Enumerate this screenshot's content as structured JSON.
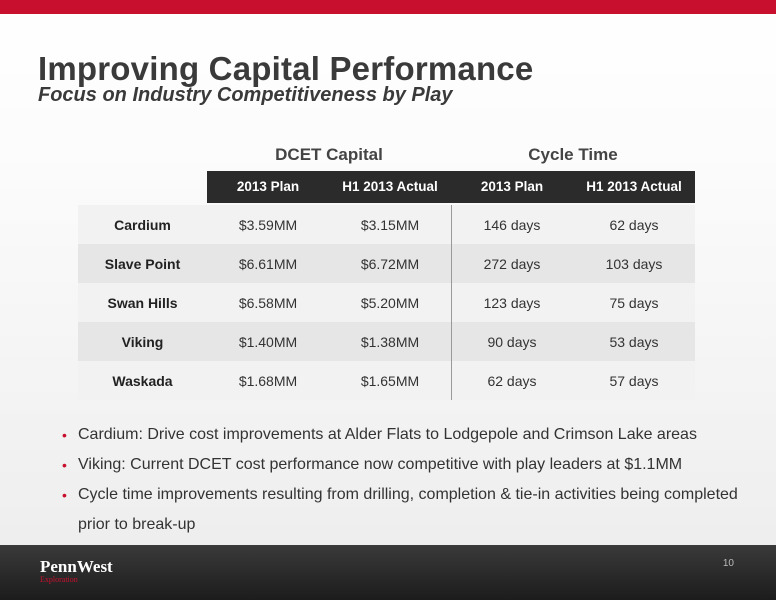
{
  "header": {
    "title": "Improving Capital Performance",
    "subtitle": "Focus on Industry Competitiveness by Play"
  },
  "table": {
    "groups": [
      "DCET Capital",
      "Cycle Time"
    ],
    "columns": [
      "2013 Plan",
      "H1 2013 Actual",
      "2013 Plan",
      "H1 2013 Actual"
    ],
    "rows": [
      {
        "name": "Cardium",
        "values": [
          "$3.59MM",
          "$3.15MM",
          "146 days",
          "62 days"
        ]
      },
      {
        "name": "Slave Point",
        "values": [
          "$6.61MM",
          "$6.72MM",
          "272 days",
          "103 days"
        ]
      },
      {
        "name": "Swan Hills",
        "values": [
          "$6.58MM",
          "$5.20MM",
          "123 days",
          "75 days"
        ]
      },
      {
        "name": "Viking",
        "values": [
          "$1.40MM",
          "$1.38MM",
          "90 days",
          "53 days"
        ]
      },
      {
        "name": "Waskada",
        "values": [
          "$1.68MM",
          "$1.65MM",
          "62 days",
          "57 days"
        ]
      }
    ]
  },
  "bullets": [
    "Cardium: Drive cost improvements at Alder Flats to Lodgepole and Crimson Lake areas",
    "Viking: Current DCET cost performance now competitive with play leaders at $1.1MM",
    "Cycle time improvements resulting from drilling, completion & tie-in activities being completed prior to break-up"
  ],
  "footer": {
    "logo_name": "PennWest",
    "logo_sub": "Exploration",
    "page_number": "10"
  },
  "colors": {
    "accent": "#c8102e",
    "header_dark": "#2b2b2b",
    "footer": "#222222"
  }
}
